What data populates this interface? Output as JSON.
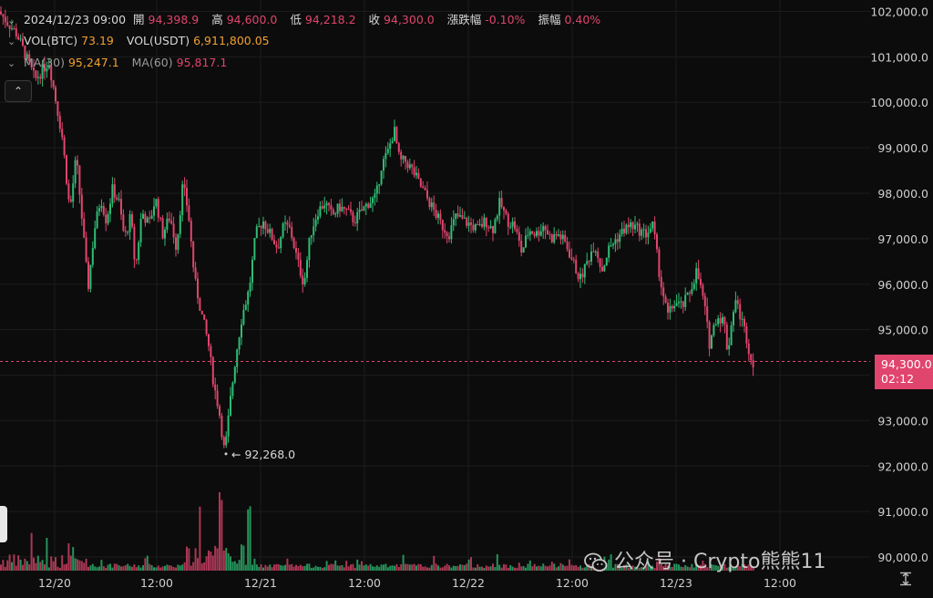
{
  "legend": {
    "row1": {
      "datetime": "2024/12/23 09:00",
      "open_label": "開",
      "open": "94,398.9",
      "high_label": "高",
      "high": "94,600.0",
      "low_label": "低",
      "low": "94,218.2",
      "close_label": "收",
      "close": "94,300.0",
      "change_label": "漲跌幅",
      "change": "-0.10%",
      "amp_label": "振幅",
      "amp": "0.40%"
    },
    "row2": {
      "vol_btc_label": "VOL(BTC)",
      "vol_btc": "73.19",
      "vol_usdt_label": "VOL(USDT)",
      "vol_usdt": "6,911,800.05"
    },
    "row3": {
      "ma30_label": "MA(30)",
      "ma30": "95,247.1",
      "ma60_label": "MA(60)",
      "ma60": "95,817.1"
    }
  },
  "current_price": {
    "price": "94,300.0",
    "countdown": "02:12"
  },
  "low_annotation": "← 92,268.0",
  "watermark_text": "公众号 · Crypto熊熊11",
  "colors": {
    "up": "#2fbd74",
    "down": "#e0456d",
    "ma30": "#f0a030",
    "grid": "#1c1c1c"
  },
  "chart_data": {
    "type": "candlestick",
    "y_ticks": [
      "102,000.0",
      "101,000.0",
      "100,000.0",
      "99,000.0",
      "98,000.0",
      "97,000.0",
      "96,000.0",
      "95,000.0",
      "94,000.0",
      "93,000.0",
      "92,000.0",
      "91,000.0",
      "90,000.0"
    ],
    "x_ticks": [
      "12/20",
      "12:00",
      "12/21",
      "12:00",
      "12/22",
      "12:00",
      "12/23",
      "12:00"
    ],
    "ylim": [
      89700,
      102250
    ],
    "current_price_value": 94300,
    "low_value": 92268,
    "price_path": [
      [
        0,
        102000
      ],
      [
        20,
        101500
      ],
      [
        40,
        100500
      ],
      [
        55,
        100900
      ],
      [
        70,
        99200
      ],
      [
        78,
        97600
      ],
      [
        85,
        98800
      ],
      [
        92,
        97300
      ],
      [
        98,
        95900
      ],
      [
        105,
        97200
      ],
      [
        112,
        97900
      ],
      [
        118,
        97400
      ],
      [
        125,
        98100
      ],
      [
        132,
        97800
      ],
      [
        138,
        97000
      ],
      [
        145,
        97500
      ],
      [
        150,
        96300
      ],
      [
        157,
        97600
      ],
      [
        165,
        97300
      ],
      [
        172,
        97900
      ],
      [
        180,
        97100
      ],
      [
        188,
        97500
      ],
      [
        195,
        96800
      ],
      [
        202,
        98200
      ],
      [
        208,
        97600
      ],
      [
        215,
        96100
      ],
      [
        222,
        95400
      ],
      [
        230,
        94700
      ],
      [
        236,
        93800
      ],
      [
        242,
        93200
      ],
      [
        248,
        92268
      ],
      [
        254,
        93400
      ],
      [
        260,
        94400
      ],
      [
        267,
        95300
      ],
      [
        275,
        95900
      ],
      [
        282,
        97100
      ],
      [
        290,
        97400
      ],
      [
        298,
        97100
      ],
      [
        306,
        96800
      ],
      [
        313,
        97300
      ],
      [
        320,
        97200
      ],
      [
        328,
        96500
      ],
      [
        335,
        96000
      ],
      [
        342,
        97100
      ],
      [
        350,
        97600
      ],
      [
        358,
        97800
      ],
      [
        366,
        97500
      ],
      [
        374,
        97700
      ],
      [
        382,
        97600
      ],
      [
        390,
        97400
      ],
      [
        398,
        97600
      ],
      [
        406,
        97800
      ],
      [
        414,
        97900
      ],
      [
        420,
        98600
      ],
      [
        427,
        98900
      ],
      [
        434,
        99400
      ],
      [
        440,
        98700
      ],
      [
        447,
        98700
      ],
      [
        454,
        98500
      ],
      [
        462,
        98200
      ],
      [
        470,
        97900
      ],
      [
        478,
        97600
      ],
      [
        486,
        97300
      ],
      [
        494,
        97100
      ],
      [
        502,
        97500
      ],
      [
        510,
        97400
      ],
      [
        518,
        97300
      ],
      [
        526,
        97200
      ],
      [
        534,
        97400
      ],
      [
        542,
        97200
      ],
      [
        550,
        97800
      ],
      [
        558,
        97400
      ],
      [
        566,
        97300
      ],
      [
        574,
        96700
      ],
      [
        582,
        97200
      ],
      [
        590,
        97100
      ],
      [
        598,
        97300
      ],
      [
        606,
        97000
      ],
      [
        614,
        97100
      ],
      [
        622,
        96900
      ],
      [
        630,
        96500
      ],
      [
        638,
        96100
      ],
      [
        646,
        96500
      ],
      [
        654,
        96900
      ],
      [
        662,
        96300
      ],
      [
        670,
        96800
      ],
      [
        678,
        97000
      ],
      [
        686,
        97200
      ],
      [
        694,
        97300
      ],
      [
        702,
        97200
      ],
      [
        710,
        97100
      ],
      [
        718,
        97300
      ],
      [
        726,
        96100
      ],
      [
        734,
        95300
      ],
      [
        742,
        95600
      ],
      [
        750,
        95500
      ],
      [
        758,
        95800
      ],
      [
        766,
        96300
      ],
      [
        774,
        95600
      ],
      [
        780,
        94700
      ],
      [
        788,
        95300
      ],
      [
        796,
        95200
      ],
      [
        800,
        94500
      ],
      [
        808,
        95700
      ],
      [
        814,
        95300
      ],
      [
        820,
        94900
      ],
      [
        826,
        94300
      ]
    ]
  }
}
